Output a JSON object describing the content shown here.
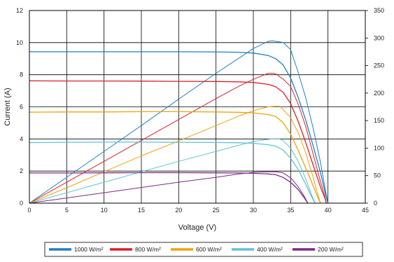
{
  "chart_data": {
    "type": "line",
    "xlabel": "Voltage (V)",
    "ylabel": "Current (A)",
    "xlim": [
      0,
      45
    ],
    "ylim_left": [
      0,
      12
    ],
    "ylim_right": [
      0,
      350
    ],
    "x_ticks": [
      "0",
      "5",
      "10",
      "15",
      "20",
      "25",
      "30",
      "35",
      "40",
      "45"
    ],
    "y_left_ticks": [
      "0",
      "2",
      "4",
      "6",
      "8",
      "10",
      "12"
    ],
    "y_right_ticks": [
      "0",
      "50",
      "100",
      "150",
      "200",
      "250",
      "300",
      "350"
    ],
    "grid": true,
    "legend_position": "bottom",
    "series": [
      {
        "name": "1000 W/m²",
        "color": "#1f7fc4",
        "iv": [
          [
            0,
            9.43
          ],
          [
            5,
            9.43
          ],
          [
            10,
            9.43
          ],
          [
            15,
            9.43
          ],
          [
            20,
            9.43
          ],
          [
            25,
            9.42
          ],
          [
            28,
            9.4
          ],
          [
            30,
            9.35
          ],
          [
            32,
            9.2
          ],
          [
            33,
            9.0
          ],
          [
            34,
            8.6
          ],
          [
            35,
            7.8
          ],
          [
            36,
            6.6
          ],
          [
            37,
            5.2
          ],
          [
            38,
            3.6
          ],
          [
            39,
            1.9
          ],
          [
            39.6,
            0.7
          ],
          [
            40,
            0
          ]
        ],
        "pv": [
          [
            0,
            0
          ],
          [
            5,
            47
          ],
          [
            10,
            94
          ],
          [
            15,
            141
          ],
          [
            20,
            189
          ],
          [
            25,
            236
          ],
          [
            28,
            263
          ],
          [
            30,
            281
          ],
          [
            32,
            294
          ],
          [
            32.5,
            295
          ],
          [
            33,
            294
          ],
          [
            34,
            292
          ],
          [
            35,
            279
          ],
          [
            36,
            238
          ],
          [
            37,
            192
          ],
          [
            38,
            137
          ],
          [
            39,
            74
          ],
          [
            39.6,
            28
          ],
          [
            40,
            0
          ]
        ]
      },
      {
        "name": "800 W/m²",
        "color": "#d8202a",
        "iv": [
          [
            0,
            7.62
          ],
          [
            5,
            7.61
          ],
          [
            10,
            7.61
          ],
          [
            15,
            7.6
          ],
          [
            20,
            7.59
          ],
          [
            25,
            7.58
          ],
          [
            28,
            7.56
          ],
          [
            30,
            7.52
          ],
          [
            32,
            7.4
          ],
          [
            33,
            7.25
          ],
          [
            34,
            6.9
          ],
          [
            35,
            6.2
          ],
          [
            36,
            5.1
          ],
          [
            37,
            3.8
          ],
          [
            38,
            2.4
          ],
          [
            39,
            1.0
          ],
          [
            39.6,
            0.3
          ],
          [
            39.8,
            0
          ]
        ],
        "pv": [
          [
            0,
            0
          ],
          [
            5,
            38
          ],
          [
            10,
            76
          ],
          [
            15,
            114
          ],
          [
            20,
            152
          ],
          [
            25,
            190
          ],
          [
            28,
            212
          ],
          [
            30,
            225
          ],
          [
            32,
            236
          ],
          [
            32.7,
            236
          ],
          [
            33,
            235
          ],
          [
            34,
            225
          ],
          [
            35,
            212
          ],
          [
            36,
            180
          ],
          [
            37,
            140
          ],
          [
            38,
            90
          ],
          [
            39,
            39
          ],
          [
            39.6,
            12
          ],
          [
            39.8,
            0
          ]
        ]
      },
      {
        "name": "600 W/m²",
        "color": "#f0a30a",
        "iv": [
          [
            0,
            5.67
          ],
          [
            5,
            5.68
          ],
          [
            10,
            5.68
          ],
          [
            15,
            5.7
          ],
          [
            20,
            5.7
          ],
          [
            25,
            5.68
          ],
          [
            28,
            5.66
          ],
          [
            30,
            5.62
          ],
          [
            32,
            5.52
          ],
          [
            33,
            5.4
          ],
          [
            34,
            5.0
          ],
          [
            35,
            4.3
          ],
          [
            36,
            3.3
          ],
          [
            37,
            2.2
          ],
          [
            38,
            1.1
          ],
          [
            38.6,
            0.4
          ],
          [
            39,
            0
          ]
        ],
        "pv": [
          [
            0,
            0
          ],
          [
            5,
            28
          ],
          [
            10,
            57
          ],
          [
            15,
            86
          ],
          [
            20,
            113
          ],
          [
            25,
            141
          ],
          [
            28,
            158
          ],
          [
            30,
            168
          ],
          [
            32,
            175
          ],
          [
            33,
            176
          ],
          [
            33.5,
            176
          ],
          [
            34,
            170
          ],
          [
            35,
            155
          ],
          [
            36,
            128
          ],
          [
            37,
            92
          ],
          [
            38,
            48
          ],
          [
            38.6,
            18
          ],
          [
            39,
            0
          ]
        ]
      },
      {
        "name": "400 W/m²",
        "color": "#5fc3d6",
        "iv": [
          [
            0,
            3.77
          ],
          [
            5,
            3.79
          ],
          [
            10,
            3.8
          ],
          [
            15,
            3.8
          ],
          [
            20,
            3.79
          ],
          [
            25,
            3.78
          ],
          [
            28,
            3.76
          ],
          [
            30,
            3.73
          ],
          [
            32,
            3.64
          ],
          [
            33,
            3.55
          ],
          [
            34,
            3.3
          ],
          [
            35,
            2.8
          ],
          [
            36,
            2.1
          ],
          [
            37,
            1.2
          ],
          [
            37.8,
            0.4
          ],
          [
            38.3,
            0
          ]
        ],
        "pv": [
          [
            0,
            0
          ],
          [
            5,
            19
          ],
          [
            10,
            38
          ],
          [
            15,
            57
          ],
          [
            20,
            76
          ],
          [
            25,
            94
          ],
          [
            28,
            105
          ],
          [
            30,
            112
          ],
          [
            32,
            116
          ],
          [
            33,
            117
          ],
          [
            33.5,
            117
          ],
          [
            34,
            113
          ],
          [
            35,
            100
          ],
          [
            36,
            76
          ],
          [
            37,
            45
          ],
          [
            37.8,
            15
          ],
          [
            38.3,
            0
          ]
        ]
      },
      {
        "name": "200 W/m²",
        "color": "#7b2a83",
        "iv": [
          [
            0,
            1.88
          ],
          [
            5,
            1.88
          ],
          [
            10,
            1.89
          ],
          [
            15,
            1.9
          ],
          [
            20,
            1.9
          ],
          [
            25,
            1.89
          ],
          [
            28,
            1.88
          ],
          [
            30,
            1.86
          ],
          [
            32,
            1.82
          ],
          [
            33,
            1.77
          ],
          [
            34,
            1.6
          ],
          [
            35,
            1.3
          ],
          [
            36,
            0.85
          ],
          [
            36.8,
            0.35
          ],
          [
            37.3,
            0
          ]
        ],
        "pv": [
          [
            0,
            0
          ],
          [
            5,
            9.4
          ],
          [
            10,
            19
          ],
          [
            15,
            28.5
          ],
          [
            20,
            38
          ],
          [
            25,
            47
          ],
          [
            28,
            53
          ],
          [
            30,
            56
          ],
          [
            32,
            57
          ],
          [
            32.5,
            57
          ],
          [
            33,
            57
          ],
          [
            34,
            55
          ],
          [
            35,
            46
          ],
          [
            36,
            30
          ],
          [
            36.8,
            13
          ],
          [
            37.3,
            0
          ]
        ]
      }
    ]
  }
}
